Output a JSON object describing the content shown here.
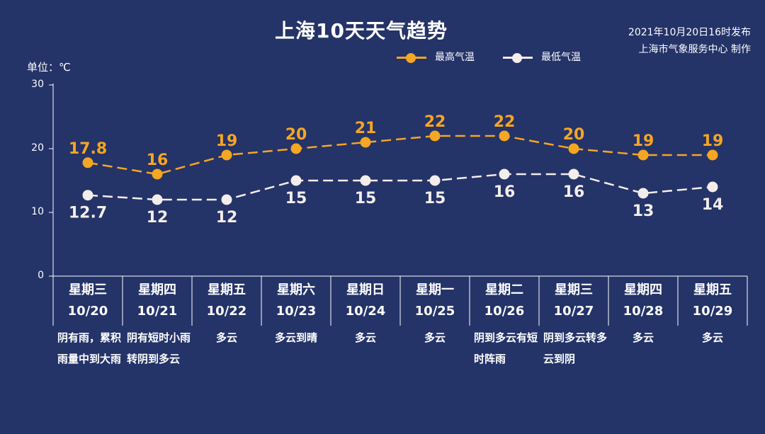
{
  "header": {
    "title": "上海10天天气趋势",
    "publish_line1": "2021年10月20日16时发布",
    "publish_line2": "上海市气象服务中心 制作",
    "unit": "单位：℃"
  },
  "legend": [
    {
      "label": "最高气温",
      "color": "#F5A623"
    },
    {
      "label": "最低气温",
      "color": "#F3EDEB"
    }
  ],
  "chart_data": {
    "type": "line",
    "title": "上海10天天气趋势",
    "ylabel": "单位：℃",
    "ylim": [
      0,
      30
    ],
    "yticks": [
      "0",
      "10",
      "20",
      "30"
    ],
    "categories": [
      "10/20",
      "10/21",
      "10/22",
      "10/23",
      "10/24",
      "10/25",
      "10/26",
      "10/27",
      "10/28",
      "10/29"
    ],
    "weekdays": [
      "星期三",
      "星期四",
      "星期五",
      "星期六",
      "星期日",
      "星期一",
      "星期二",
      "星期三",
      "星期四",
      "星期五"
    ],
    "weather": [
      "阴有雨，累积雨量中到大雨",
      "阴有短时小雨转阴到多云",
      "多云",
      "多云到晴",
      "多云",
      "多云",
      "阴到多云有短时阵雨",
      "阴到多云转多云到阴",
      "多云",
      "多云"
    ],
    "series": [
      {
        "name": "最高气温",
        "color": "#F5A623",
        "values": [
          17.8,
          16,
          19,
          20,
          21,
          22,
          22,
          20,
          19,
          19
        ],
        "labels": [
          "17.8",
          "16",
          "19",
          "20",
          "21",
          "22",
          "22",
          "20",
          "19",
          "19"
        ],
        "label_position": "above"
      },
      {
        "name": "最低气温",
        "color": "#F3EDEB",
        "values": [
          12.7,
          12,
          12,
          15,
          15,
          15,
          16,
          16,
          13,
          14
        ],
        "labels": [
          "12.7",
          "12",
          "12",
          "15",
          "15",
          "15",
          "16",
          "16",
          "13",
          "14"
        ],
        "label_position": "below"
      }
    ],
    "grid": false,
    "legend_position": "top-right"
  }
}
